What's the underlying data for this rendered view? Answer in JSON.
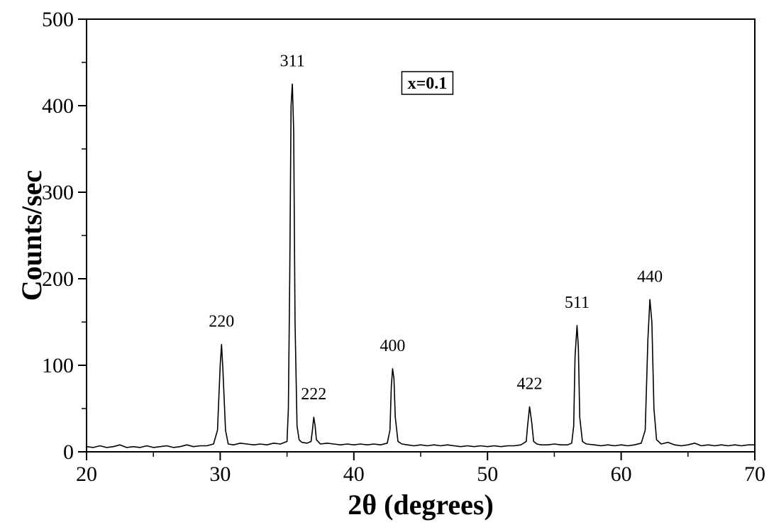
{
  "chart_data": {
    "type": "line",
    "title": "",
    "xlabel": "2θ (degrees)",
    "ylabel": "Counts/sec",
    "xlim": [
      20,
      70
    ],
    "ylim": [
      0,
      500
    ],
    "xticks": [
      20,
      30,
      40,
      50,
      60,
      70
    ],
    "yticks": [
      0,
      100,
      200,
      300,
      400,
      500
    ],
    "grid": false,
    "legend": {
      "text": "x=0.1",
      "placement": "top-center"
    },
    "line_color": "#000000",
    "series": [
      {
        "values": [
          [
            20.0,
            6
          ],
          [
            20.5,
            5
          ],
          [
            21.0,
            7
          ],
          [
            21.5,
            5
          ],
          [
            22.0,
            6
          ],
          [
            22.5,
            8
          ],
          [
            23.0,
            5
          ],
          [
            23.5,
            6
          ],
          [
            24.0,
            5
          ],
          [
            24.5,
            7
          ],
          [
            25.0,
            5
          ],
          [
            25.5,
            6
          ],
          [
            26.0,
            7
          ],
          [
            26.5,
            5
          ],
          [
            27.0,
            6
          ],
          [
            27.5,
            8
          ],
          [
            28.0,
            6
          ],
          [
            28.5,
            7
          ],
          [
            29.0,
            7
          ],
          [
            29.5,
            9
          ],
          [
            29.8,
            25
          ],
          [
            30.0,
            100
          ],
          [
            30.1,
            124
          ],
          [
            30.2,
            95
          ],
          [
            30.4,
            25
          ],
          [
            30.6,
            9
          ],
          [
            31.0,
            8
          ],
          [
            31.5,
            10
          ],
          [
            32.0,
            9
          ],
          [
            32.5,
            8
          ],
          [
            33.0,
            9
          ],
          [
            33.5,
            8
          ],
          [
            34.0,
            10
          ],
          [
            34.5,
            9
          ],
          [
            35.0,
            12
          ],
          [
            35.1,
            50
          ],
          [
            35.2,
            200
          ],
          [
            35.3,
            400
          ],
          [
            35.4,
            425
          ],
          [
            35.5,
            370
          ],
          [
            35.6,
            150
          ],
          [
            35.75,
            30
          ],
          [
            35.9,
            14
          ],
          [
            36.1,
            11
          ],
          [
            36.5,
            10
          ],
          [
            36.8,
            12
          ],
          [
            36.9,
            25
          ],
          [
            37.0,
            40
          ],
          [
            37.1,
            30
          ],
          [
            37.2,
            14
          ],
          [
            37.5,
            9
          ],
          [
            38.0,
            10
          ],
          [
            38.5,
            9
          ],
          [
            39.0,
            8
          ],
          [
            39.5,
            9
          ],
          [
            40.0,
            8
          ],
          [
            40.5,
            9
          ],
          [
            41.0,
            8
          ],
          [
            41.5,
            9
          ],
          [
            42.0,
            8
          ],
          [
            42.5,
            10
          ],
          [
            42.7,
            25
          ],
          [
            42.8,
            75
          ],
          [
            42.9,
            96
          ],
          [
            43.0,
            85
          ],
          [
            43.1,
            40
          ],
          [
            43.3,
            12
          ],
          [
            43.6,
            9
          ],
          [
            44.0,
            8
          ],
          [
            44.5,
            7
          ],
          [
            45.0,
            8
          ],
          [
            45.5,
            7
          ],
          [
            46.0,
            8
          ],
          [
            46.5,
            7
          ],
          [
            47.0,
            8
          ],
          [
            47.5,
            7
          ],
          [
            48.0,
            6
          ],
          [
            48.5,
            7
          ],
          [
            49.0,
            6
          ],
          [
            49.5,
            7
          ],
          [
            50.0,
            6
          ],
          [
            50.5,
            7
          ],
          [
            51.0,
            6
          ],
          [
            51.5,
            7
          ],
          [
            52.0,
            7
          ],
          [
            52.5,
            8
          ],
          [
            52.9,
            12
          ],
          [
            53.0,
            30
          ],
          [
            53.15,
            52
          ],
          [
            53.3,
            35
          ],
          [
            53.45,
            12
          ],
          [
            53.7,
            9
          ],
          [
            54.0,
            8
          ],
          [
            54.5,
            8
          ],
          [
            55.0,
            9
          ],
          [
            55.5,
            8
          ],
          [
            56.0,
            8
          ],
          [
            56.3,
            10
          ],
          [
            56.45,
            30
          ],
          [
            56.55,
            110
          ],
          [
            56.7,
            146
          ],
          [
            56.8,
            120
          ],
          [
            56.9,
            40
          ],
          [
            57.1,
            12
          ],
          [
            57.4,
            9
          ],
          [
            58.0,
            8
          ],
          [
            58.5,
            7
          ],
          [
            59.0,
            8
          ],
          [
            59.5,
            7
          ],
          [
            60.0,
            8
          ],
          [
            60.5,
            7
          ],
          [
            61.0,
            8
          ],
          [
            61.5,
            10
          ],
          [
            61.8,
            25
          ],
          [
            62.0,
            130
          ],
          [
            62.15,
            176
          ],
          [
            62.3,
            150
          ],
          [
            62.45,
            50
          ],
          [
            62.65,
            14
          ],
          [
            63.0,
            9
          ],
          [
            63.5,
            11
          ],
          [
            64.0,
            8
          ],
          [
            64.5,
            7
          ],
          [
            65.0,
            8
          ],
          [
            65.5,
            10
          ],
          [
            66.0,
            7
          ],
          [
            66.5,
            8
          ],
          [
            67.0,
            7
          ],
          [
            67.5,
            8
          ],
          [
            68.0,
            7
          ],
          [
            68.5,
            8
          ],
          [
            69.0,
            7
          ],
          [
            69.5,
            8
          ],
          [
            70.0,
            8
          ]
        ]
      }
    ],
    "annotations": [
      {
        "text": "220",
        "x": 30.1,
        "y": 124
      },
      {
        "text": "311",
        "x": 35.4,
        "y": 425
      },
      {
        "text": "222",
        "x": 37.0,
        "y": 40
      },
      {
        "text": "400",
        "x": 42.9,
        "y": 96
      },
      {
        "text": "422",
        "x": 53.15,
        "y": 52
      },
      {
        "text": "511",
        "x": 56.7,
        "y": 146
      },
      {
        "text": "440",
        "x": 62.15,
        "y": 176
      }
    ]
  }
}
